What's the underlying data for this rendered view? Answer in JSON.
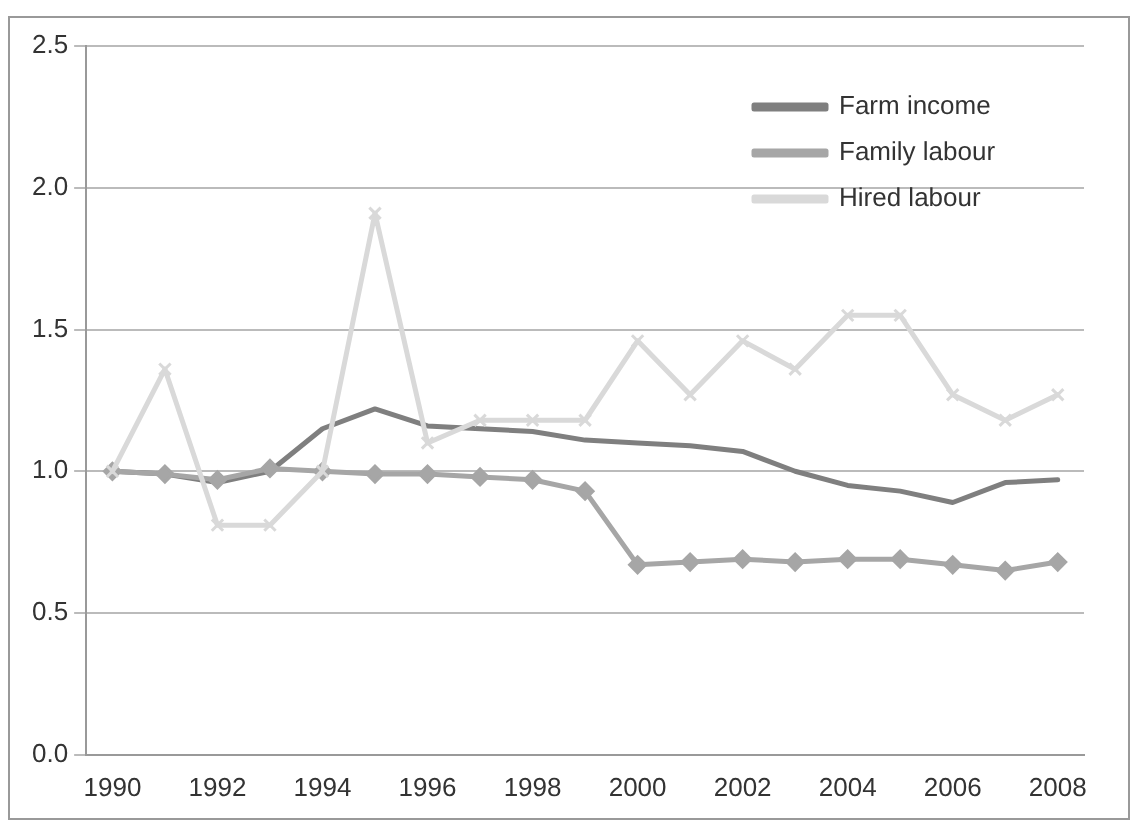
{
  "chart_data": {
    "type": "line",
    "categories": [
      "1990",
      null,
      "1992",
      null,
      "1994",
      null,
      "1996",
      null,
      "1998",
      null,
      "2000",
      null,
      "2002",
      null,
      "2004",
      null,
      "2006",
      null,
      "2008"
    ],
    "series": [
      {
        "name": "Farm income",
        "color": "#7f7f7f",
        "marker": "none",
        "values": [
          1.0,
          0.99,
          0.96,
          1.0,
          1.15,
          1.22,
          1.16,
          1.15,
          1.14,
          1.11,
          1.1,
          1.09,
          1.07,
          1.0,
          0.95,
          0.93,
          0.89,
          0.96,
          0.97
        ]
      },
      {
        "name": "Family labour",
        "color": "#a6a6a6",
        "marker": "diamond",
        "values": [
          1.0,
          0.99,
          0.97,
          1.01,
          1.0,
          0.99,
          0.99,
          0.98,
          0.97,
          0.93,
          0.67,
          0.68,
          0.69,
          0.68,
          0.69,
          0.69,
          0.67,
          0.65,
          0.68
        ]
      },
      {
        "name": "Hired labour",
        "color": "#d9d9d9",
        "marker": "cross",
        "values": [
          1.0,
          1.36,
          0.81,
          0.81,
          1.0,
          1.91,
          1.1,
          1.18,
          1.18,
          1.18,
          1.46,
          1.27,
          1.46,
          1.36,
          1.55,
          1.55,
          1.27,
          1.18,
          1.27
        ]
      }
    ],
    "ylim": [
      0,
      2.5
    ],
    "yticks": [
      {
        "value": 0,
        "label": "0.0"
      },
      0.5,
      {
        "value": 1,
        "label": "1.0"
      },
      1.5,
      {
        "value": 2,
        "label": "2.0"
      },
      2.5
    ],
    "grid": "y",
    "legend": "top right"
  }
}
